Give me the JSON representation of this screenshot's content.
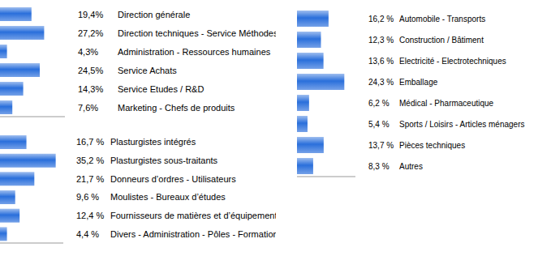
{
  "chart_data": [
    {
      "type": "bar",
      "orientation": "horizontal",
      "data_labels": true,
      "tick_labels": false,
      "grid": false,
      "color": "#2a6fdb",
      "categories": [
        "Direction générale",
        "Direction techniques - Service Méthodes",
        "Administration - Ressources humaines",
        "Service Achats",
        "Service Etudes / R&D",
        "Marketing - Chefs de produits"
      ],
      "values": [
        19.4,
        27.2,
        4.3,
        24.5,
        14.3,
        7.6
      ],
      "value_labels": [
        "19,4%",
        "27,2%",
        "4,3%",
        "24,5%",
        "14,3%",
        "7,6%"
      ],
      "xlim": [
        0,
        40
      ],
      "xticks": [
        0,
        10,
        20,
        30,
        40
      ]
    },
    {
      "type": "bar",
      "orientation": "horizontal",
      "data_labels": true,
      "tick_labels": false,
      "grid": false,
      "color": "#2a6fdb",
      "categories": [
        "Plasturgistes intégrés",
        "Plasturgistes sous-traitants",
        "Donneurs d’ordres - Utilisateurs",
        "Moulistes - Bureaux d’études",
        "Fournisseurs de matières et d’équipements",
        "Divers - Administration - Pôles - Formation"
      ],
      "values": [
        16.7,
        35.2,
        21.7,
        9.6,
        12.4,
        4.4
      ],
      "value_labels": [
        "16,7 %",
        "35,2 %",
        "21,7 %",
        "9,6 %",
        "12,4 %",
        "4,4 %"
      ],
      "xlim": [
        0,
        40
      ],
      "xticks": [
        0,
        10,
        20,
        30,
        40
      ]
    },
    {
      "type": "bar",
      "orientation": "horizontal",
      "data_labels": true,
      "tick_labels": false,
      "grid": false,
      "color": "#2a6fdb",
      "categories": [
        "Automobile - Transports",
        "Construction / Bâtiment",
        "Electricité - Electrotechniques",
        "Emballage",
        "Médical - Pharmaceutique",
        "Sports / Loisirs - Articles ménagers",
        "Pièces techniques",
        "Autres"
      ],
      "values": [
        16.2,
        12.3,
        13.6,
        24.3,
        6.2,
        5.4,
        13.7,
        8.3
      ],
      "value_labels": [
        "16,2 %",
        "12,3 %",
        "13,6 %",
        "24,3 %",
        "6,2 %",
        "5,4 %",
        "13,7 %",
        "8,3 %"
      ],
      "xlim": [
        0,
        30
      ],
      "xticks": [
        0,
        10,
        20,
        30
      ]
    }
  ]
}
